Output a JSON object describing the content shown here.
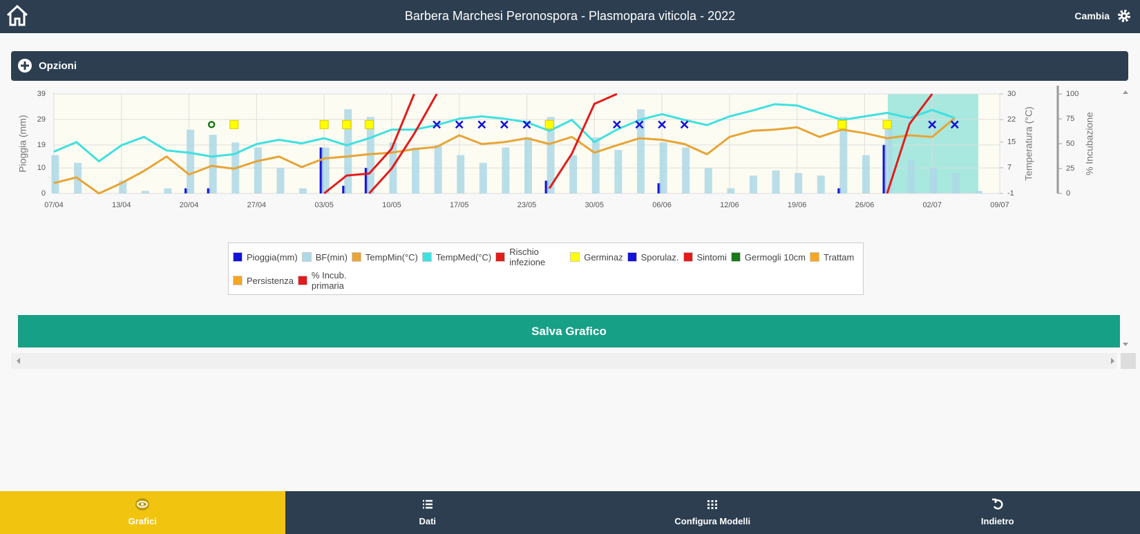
{
  "header": {
    "title": "Barbera Marchesi Peronospora - Plasmopara viticola - 2022",
    "action": "Cambia"
  },
  "options": {
    "label": "Opzioni"
  },
  "chart_data": {
    "type": "combo",
    "ylabel": "Pioggia (mm)",
    "y2label": "Temperatura (°C)",
    "y3label": "% Incubazione",
    "ylim": [
      0,
      39
    ],
    "yticks": [
      0,
      10,
      19,
      29,
      39
    ],
    "y2lim": [
      -1,
      30
    ],
    "y2ticks": [
      -1,
      7,
      15,
      22,
      30
    ],
    "y3lim": [
      0,
      100
    ],
    "y3ticks": [
      0,
      25,
      50,
      75,
      100
    ],
    "grid": true,
    "categories": [
      "07/04",
      null,
      null,
      "13/04",
      null,
      null,
      "20/04",
      null,
      null,
      "27/04",
      null,
      null,
      "03/05",
      null,
      null,
      "10/05",
      null,
      null,
      "17/05",
      null,
      null,
      "23/05",
      null,
      null,
      "30/05",
      null,
      null,
      "06/06",
      null,
      null,
      "12/06",
      null,
      null,
      "19/06",
      null,
      null,
      "26/06",
      null,
      null,
      "02/07",
      null,
      null,
      "09/07"
    ],
    "series": [
      {
        "name": "Pioggia(mm)",
        "type": "bar",
        "axis": "y",
        "color": "#1414d8",
        "values": [
          0,
          0,
          0,
          0,
          0,
          0,
          2,
          2,
          0,
          0,
          0,
          0,
          18,
          3,
          10,
          0,
          0,
          0,
          0,
          0,
          0,
          0,
          5,
          0,
          0,
          0,
          0,
          4,
          0,
          0,
          0,
          0,
          0,
          0,
          0,
          2,
          0,
          19,
          0,
          0,
          0,
          0,
          0
        ]
      },
      {
        "name": "BF(min)",
        "type": "bar",
        "axis": "y",
        "color": "#add8e6",
        "values": [
          15,
          12,
          0,
          5,
          1,
          2,
          25,
          23,
          20,
          18,
          10,
          2,
          18,
          33,
          30,
          20,
          18,
          19,
          15,
          12,
          18,
          22,
          30,
          15,
          22,
          17,
          33,
          20,
          18,
          10,
          2,
          7,
          9,
          8,
          7,
          30,
          15,
          28,
          13,
          10,
          8,
          1,
          0
        ]
      },
      {
        "name": "TempMin(°C)",
        "type": "line",
        "axis": "y2",
        "color": "#e8a435",
        "values": [
          2.2,
          4,
          -1,
          2.2,
          6,
          10.5,
          4.9,
          7.6,
          6.7,
          9,
          10.5,
          7.2,
          9.9,
          10.5,
          11.2,
          11.7,
          12.8,
          13.5,
          17.1,
          14.4,
          15,
          16.2,
          14.4,
          16.6,
          11.7,
          14,
          16.2,
          15.7,
          14.4,
          11.2,
          16.6,
          18.5,
          18.9,
          19.6,
          16.6,
          18.9,
          17.8,
          16.2,
          17.1,
          16.6,
          22.5,
          null,
          null
        ]
      },
      {
        "name": "TempMed(°C)",
        "type": "line",
        "axis": "y2",
        "color": "#3fe0e0",
        "values": [
          12,
          15,
          9,
          14,
          16.6,
          12.4,
          11.7,
          10.5,
          11.2,
          14.4,
          15.7,
          14.6,
          16.2,
          14,
          16.2,
          18.9,
          18.9,
          20.3,
          22.3,
          23,
          22.3,
          21.2,
          18.5,
          21.9,
          15,
          18.9,
          21.9,
          23.7,
          21.9,
          20.3,
          23,
          24.8,
          26.8,
          26.4,
          24.1,
          21.9,
          23,
          24.1,
          22.5,
          25,
          22.5,
          null,
          null
        ]
      },
      {
        "name": "Rischio infezione",
        "type": "line",
        "axis": "y3",
        "color": "#e31b1b",
        "values": [
          null,
          null,
          null,
          null,
          null,
          null,
          null,
          null,
          null,
          null,
          null,
          null,
          null,
          null,
          0,
          25,
          60,
          100,
          null,
          null,
          null,
          null,
          null,
          null,
          null,
          null,
          null,
          null,
          null,
          null,
          null,
          null,
          null,
          null,
          null,
          null,
          null,
          0,
          70,
          100,
          null,
          null,
          null
        ]
      },
      {
        "name": "Germinaz",
        "type": "scatter",
        "marker": "square",
        "axis": "y",
        "color": "#ffff00",
        "values": [
          null,
          null,
          null,
          null,
          null,
          null,
          null,
          null,
          27,
          null,
          null,
          null,
          27,
          27,
          27,
          null,
          null,
          null,
          null,
          null,
          null,
          null,
          27,
          null,
          null,
          null,
          null,
          null,
          null,
          null,
          null,
          null,
          null,
          null,
          null,
          27,
          null,
          27,
          null,
          null,
          null,
          null,
          null
        ]
      },
      {
        "name": "Sporulaz.",
        "type": "scatter",
        "marker": "cross",
        "axis": "y",
        "color": "#1414d8",
        "values": [
          null,
          null,
          null,
          null,
          null,
          null,
          null,
          null,
          null,
          null,
          null,
          null,
          null,
          null,
          null,
          null,
          null,
          27,
          27,
          27,
          27,
          27,
          null,
          null,
          null,
          27,
          27,
          27,
          27,
          null,
          null,
          null,
          null,
          null,
          null,
          null,
          null,
          null,
          null,
          27,
          27,
          null,
          null
        ]
      },
      {
        "name": "Sintomi",
        "type": "scatter",
        "marker": "square",
        "axis": "y",
        "color": "#e31b1b",
        "values": [
          null,
          null,
          null,
          null,
          null,
          null,
          null,
          null,
          null,
          null,
          null,
          null,
          null,
          null,
          null,
          null,
          null,
          null,
          null,
          null,
          null,
          null,
          null,
          null,
          null,
          null,
          null,
          null,
          null,
          null,
          null,
          null,
          null,
          null,
          null,
          null,
          null,
          null,
          null,
          null,
          null,
          null,
          null
        ]
      },
      {
        "name": "Germogli 10cm",
        "type": "scatter",
        "marker": "circle",
        "axis": "y",
        "color": "#1a7a1a",
        "values": [
          null,
          null,
          null,
          null,
          null,
          null,
          null,
          27,
          null,
          null,
          null,
          null,
          null,
          null,
          null,
          null,
          null,
          null,
          null,
          null,
          null,
          null,
          null,
          null,
          null,
          null,
          null,
          null,
          null,
          null,
          null,
          null,
          null,
          null,
          null,
          null,
          null,
          null,
          null,
          null,
          null,
          null,
          null
        ]
      },
      {
        "name": "Trattam",
        "type": "scatter",
        "marker": "square",
        "axis": "y",
        "color": "#f5a623",
        "values": [
          null,
          null,
          null,
          null,
          null,
          null,
          null,
          null,
          null,
          null,
          null,
          null,
          null,
          null,
          null,
          null,
          null,
          null,
          null,
          null,
          null,
          null,
          null,
          null,
          null,
          null,
          null,
          null,
          null,
          null,
          null,
          null,
          null,
          null,
          null,
          null,
          null,
          null,
          null,
          null,
          null,
          null,
          null
        ]
      },
      {
        "name": "Persistenza",
        "type": "scatter",
        "marker": "square",
        "axis": "y",
        "color": "#f5a623",
        "values": [
          null,
          null,
          null,
          null,
          null,
          null,
          null,
          null,
          null,
          null,
          null,
          null,
          null,
          null,
          null,
          null,
          null,
          null,
          null,
          null,
          null,
          null,
          null,
          null,
          null,
          null,
          null,
          null,
          null,
          null,
          null,
          null,
          null,
          null,
          null,
          null,
          null,
          null,
          null,
          null,
          null,
          null,
          null
        ]
      },
      {
        "name": "% Incub. primaria",
        "type": "line",
        "axis": "y3",
        "color": "#e31b1b",
        "values": [
          null,
          null,
          null,
          null,
          null,
          null,
          null,
          null,
          null,
          null,
          null,
          null,
          0,
          18,
          20,
          45,
          100,
          null,
          null,
          null,
          null,
          null,
          5,
          40,
          90,
          100,
          null,
          null,
          null,
          null,
          null,
          null,
          null,
          null,
          null,
          null,
          null,
          null,
          null,
          null,
          null,
          null,
          null
        ]
      }
    ]
  },
  "save_button": "Salva Grafico",
  "nav": [
    {
      "label": "Grafici",
      "active": true
    },
    {
      "label": "Dati",
      "active": false
    },
    {
      "label": "Configura Modelli",
      "active": false
    },
    {
      "label": "Indietro",
      "active": false
    }
  ]
}
